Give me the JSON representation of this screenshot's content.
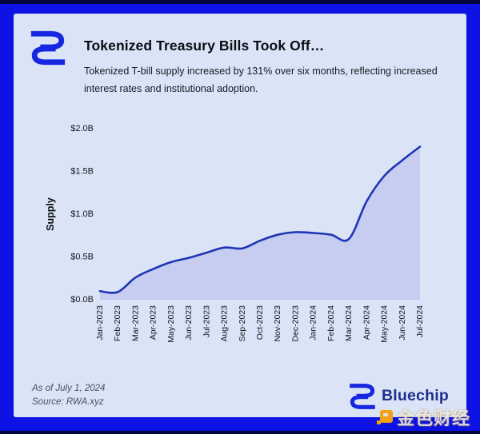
{
  "header": {
    "title": "Tokenized Treasury Bills Took Off…",
    "subtitle": "Tokenized T-bill supply increased by 131% over six months, reflecting increased interest rates and institutional adoption."
  },
  "brand": {
    "name": "Bluechip"
  },
  "footer": {
    "as_of": "As of July 1, 2024",
    "source": "Source: RWA.xyz"
  },
  "watermark": {
    "text": "金色财经"
  },
  "colors": {
    "frame_blue": "#0c13e4",
    "frame_dark": "#04063e",
    "card_bg": "#dae4f6",
    "line": "#1f35b5",
    "fill": "#c6cdf0",
    "axis_text": "#15171d",
    "logo_blue": "#1527e0",
    "wordmark": "#1e2f8c",
    "watermark_orange": "#f2a113"
  },
  "chart_data": {
    "type": "area",
    "title": "",
    "xlabel": "",
    "ylabel": "Supply",
    "x": [
      "Jan-2023",
      "Feb-2023",
      "Mar-2023",
      "Apr-2023",
      "May-2023",
      "Jun-2023",
      "Jul-2023",
      "Aug-2023",
      "Sep-2023",
      "Oct-2023",
      "Nov-2023",
      "Dec-2023",
      "Jan-2024",
      "Feb-2024",
      "Mar-2024",
      "Apr-2024",
      "May-2024",
      "Jun-2024",
      "Jul-2024"
    ],
    "series": [
      {
        "name": "Tokenized T-bill supply ($B)",
        "values": [
          0.1,
          0.09,
          0.26,
          0.36,
          0.44,
          0.49,
          0.55,
          0.61,
          0.6,
          0.69,
          0.76,
          0.79,
          0.78,
          0.76,
          0.71,
          1.15,
          1.45,
          1.63,
          1.79
        ]
      }
    ],
    "ylim": [
      0,
      2.0
    ],
    "yticks": [
      "$0.0B",
      "$0.5B",
      "$1.0B",
      "$1.5B",
      "$2.0B"
    ],
    "grid": false,
    "legend": false
  }
}
